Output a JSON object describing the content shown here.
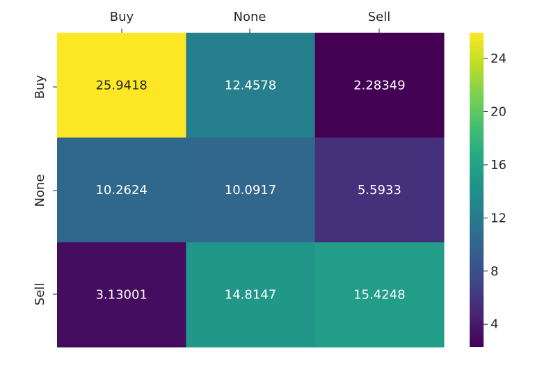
{
  "chart_data": {
    "type": "heatmap",
    "title": "",
    "xlabel": "",
    "ylabel": "",
    "x_categories": [
      "Buy",
      "None",
      "Sell"
    ],
    "y_categories": [
      "Buy",
      "None",
      "Sell"
    ],
    "x_tick_position": "top",
    "values": [
      [
        25.9418,
        12.4578,
        2.28349
      ],
      [
        10.2624,
        10.0917,
        5.5933
      ],
      [
        3.13001,
        14.8147,
        15.4248
      ]
    ],
    "cell_labels": [
      [
        "25.9418",
        "12.4578",
        "2.28349"
      ],
      [
        "10.2624",
        "10.0917",
        "5.5933"
      ],
      [
        "3.13001",
        "14.8147",
        "15.4248"
      ]
    ],
    "colormap": "viridis",
    "colorbar": {
      "vmin": 2.28349,
      "vmax": 25.9418,
      "ticks": [
        4,
        8,
        12,
        16,
        20,
        24
      ],
      "tick_labels": [
        "4",
        "8",
        "12",
        "16",
        "20",
        "24"
      ],
      "placement": "right"
    },
    "grid": false,
    "legend": "none"
  }
}
